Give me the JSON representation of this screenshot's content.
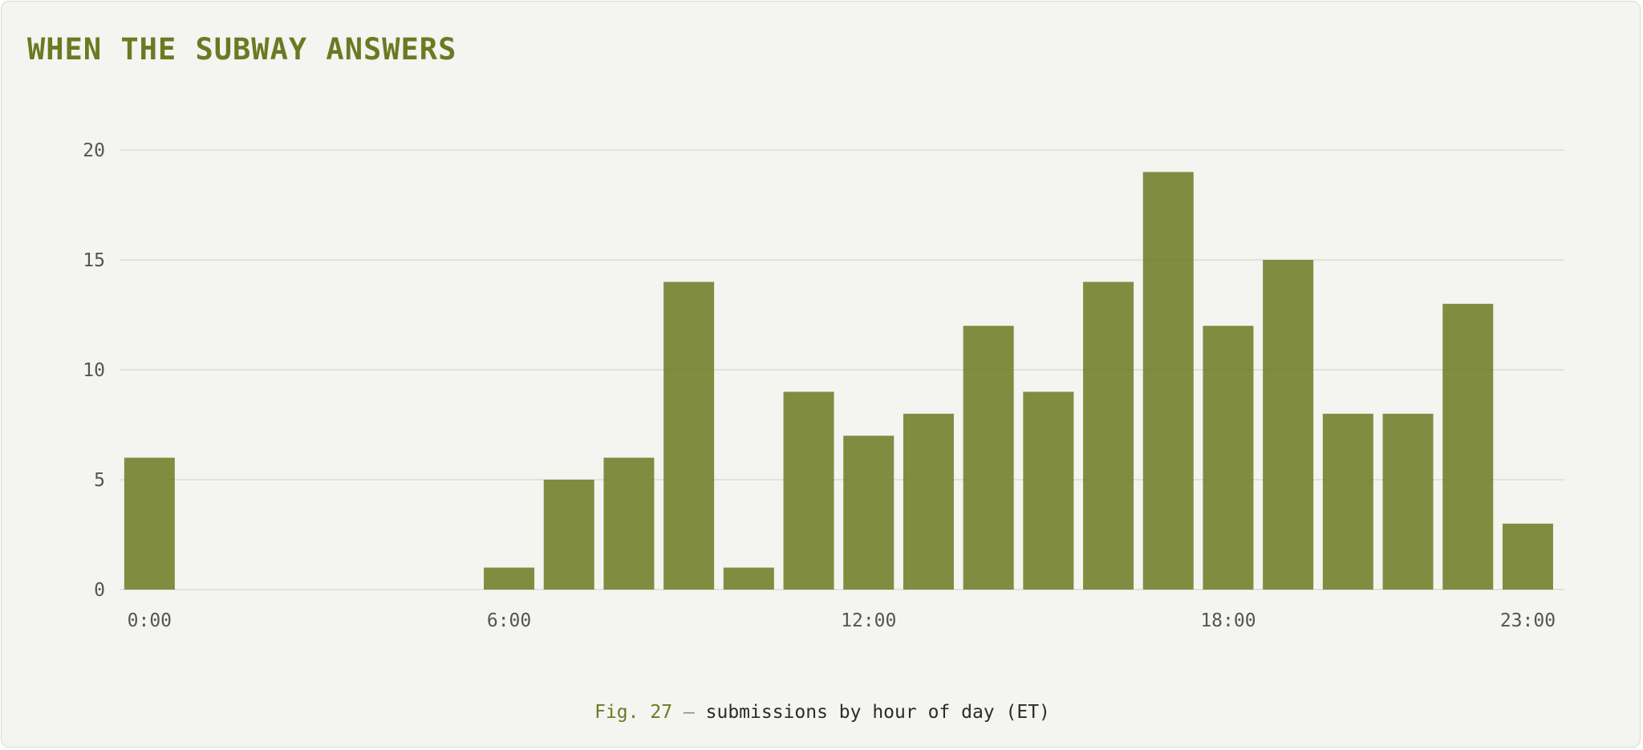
{
  "title": "WHEN THE SUBWAY ANSWERS",
  "caption": {
    "fig_label": "Fig. 27",
    "separator": "—",
    "text": "submissions by hour of day (ET)"
  },
  "colors": {
    "bar": "#6b7a22",
    "title": "#6b7a22",
    "grid": "#e2e2dc",
    "tick_text": "#555555"
  },
  "chart_data": {
    "type": "bar",
    "categories": [
      "0:00",
      "1:00",
      "2:00",
      "3:00",
      "4:00",
      "5:00",
      "6:00",
      "7:00",
      "8:00",
      "9:00",
      "10:00",
      "11:00",
      "12:00",
      "13:00",
      "14:00",
      "15:00",
      "16:00",
      "17:00",
      "18:00",
      "19:00",
      "20:00",
      "21:00",
      "22:00",
      "23:00"
    ],
    "values": [
      6,
      0,
      0,
      0,
      0,
      0,
      1,
      5,
      6,
      14,
      1,
      9,
      7,
      8,
      12,
      9,
      14,
      19,
      12,
      15,
      8,
      8,
      13,
      3
    ],
    "x_tick_labels": [
      "0:00",
      "6:00",
      "12:00",
      "18:00",
      "23:00"
    ],
    "y_ticks": [
      0,
      5,
      10,
      15,
      20
    ],
    "ylim": [
      0,
      20
    ],
    "grid": true,
    "xlabel": "",
    "ylabel": ""
  }
}
